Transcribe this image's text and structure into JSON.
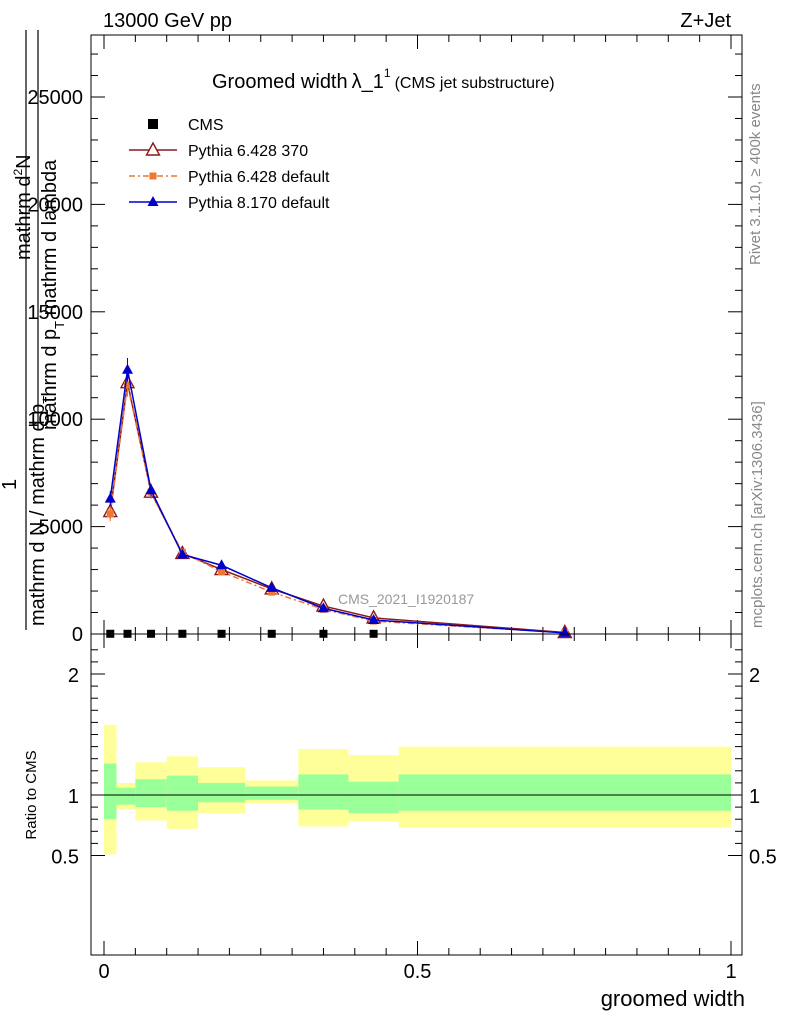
{
  "header": {
    "left": "13000 GeV pp",
    "right": "Z+Jet"
  },
  "side_labels": {
    "rivet": "Rivet 3.1.10, ≥ 400k events",
    "mcplots": "mcplots.cern.ch [arXiv:1306.3436]"
  },
  "chart_data": [
    {
      "type": "line",
      "title_main": "Groomed width",
      "title_sym": "λ_1",
      "title_sup": "1",
      "title_tail": "(CMS jet substructure)",
      "ylabel_top": "1",
      "ylabel_line1": "mathrm d",
      "ylabel_line1_sup": "2",
      "ylabel_line1_tail": "N",
      "ylabel_line2": "mathrm d p",
      "ylabel_line2_sub": "T",
      "ylabel_line2_tail": " mathrm d lambda",
      "ylabel_bottom": "mathrm d N / mathrm d p",
      "ylabel_bottom_sub": "T",
      "watermark": "CMS_2021_I1920187",
      "ylim": [
        0,
        28000
      ],
      "xlim": [
        -0.02,
        1.02
      ],
      "yticks": [
        0,
        5000,
        10000,
        15000,
        20000,
        25000
      ],
      "ytick_labels": [
        "0",
        "5000",
        "10000",
        "15000",
        "20000",
        "25000"
      ],
      "legend_position": "top-left",
      "x": [
        0.01,
        0.0375,
        0.075,
        0.125,
        0.1875,
        0.2675,
        0.35,
        0.43,
        0.735
      ],
      "series": [
        {
          "name": "CMS",
          "color": "#000000",
          "marker": "square",
          "values": [
            10,
            10,
            10,
            10,
            10,
            10,
            10,
            10,
            null
          ]
        },
        {
          "name": "Pythia 6.428 370",
          "color": "#8b1a1a",
          "marker": "open-triangle",
          "values": [
            5700,
            11700,
            6600,
            3750,
            3000,
            2100,
            1300,
            750,
            70
          ]
        },
        {
          "name": "Pythia 6.428 default",
          "color": "#ee7733",
          "marker": "filled-square",
          "dash": true,
          "values": [
            5600,
            11600,
            6600,
            3800,
            2900,
            1950,
            1150,
            600,
            60
          ]
        },
        {
          "name": "Pythia 8.170 default",
          "color": "#0000cc",
          "marker": "filled-triangle",
          "values": [
            6300,
            12300,
            6700,
            3700,
            3200,
            2150,
            1200,
            650,
            50
          ]
        }
      ],
      "error_bars": [
        350,
        550,
        300,
        200,
        150,
        120,
        100,
        80,
        30
      ]
    },
    {
      "type": "area",
      "ylabel": "Ratio to CMS",
      "xlabel": "groomed width",
      "ylim": [
        0.33,
        2.33
      ],
      "yticks": [
        0.5,
        1,
        2
      ],
      "ytick_labels": [
        "0.5",
        "1",
        "2"
      ],
      "xticks": [
        0,
        0.5,
        1
      ],
      "xtick_labels": [
        "0",
        "0.5",
        "1"
      ],
      "bins": [
        {
          "lo": 0.0,
          "hi": 0.02,
          "yellow": [
            0.51,
            1.58
          ],
          "green": [
            0.8,
            1.26
          ]
        },
        {
          "lo": 0.02,
          "hi": 0.05,
          "yellow": [
            0.88,
            1.1
          ],
          "green": [
            0.92,
            1.06
          ]
        },
        {
          "lo": 0.05,
          "hi": 0.1,
          "yellow": [
            0.79,
            1.27
          ],
          "green": [
            0.9,
            1.13
          ]
        },
        {
          "lo": 0.1,
          "hi": 0.15,
          "yellow": [
            0.72,
            1.32
          ],
          "green": [
            0.87,
            1.16
          ]
        },
        {
          "lo": 0.15,
          "hi": 0.225,
          "yellow": [
            0.85,
            1.23
          ],
          "green": [
            0.94,
            1.1
          ]
        },
        {
          "lo": 0.225,
          "hi": 0.31,
          "yellow": [
            0.93,
            1.12
          ],
          "green": [
            0.96,
            1.07
          ]
        },
        {
          "lo": 0.31,
          "hi": 0.39,
          "yellow": [
            0.74,
            1.38
          ],
          "green": [
            0.88,
            1.17
          ]
        },
        {
          "lo": 0.39,
          "hi": 0.47,
          "yellow": [
            0.78,
            1.33
          ],
          "green": [
            0.85,
            1.11
          ]
        },
        {
          "lo": 0.47,
          "hi": 1.0,
          "yellow": [
            0.73,
            1.4
          ],
          "green": [
            0.87,
            1.17
          ]
        }
      ]
    }
  ]
}
